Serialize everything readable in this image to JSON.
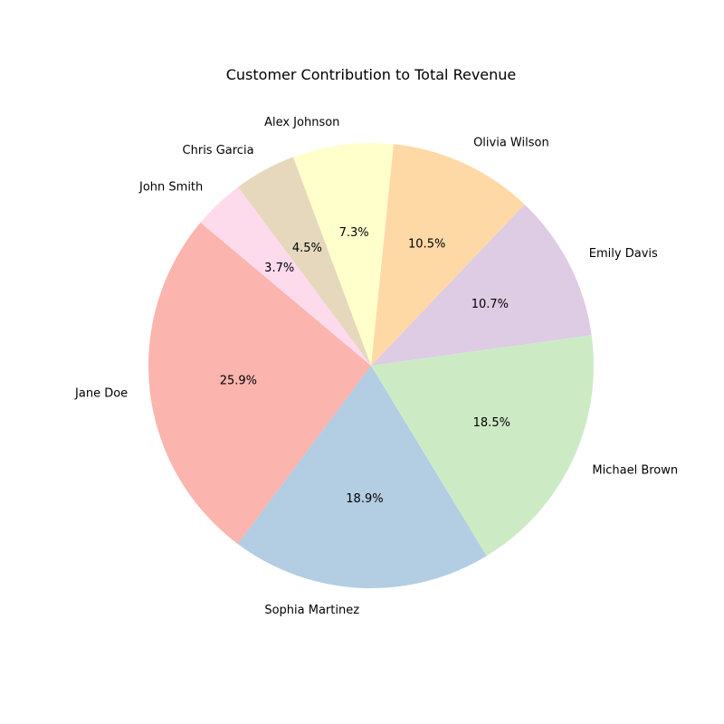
{
  "chart_data": {
    "type": "pie",
    "title": "Customer Contribution to Total Revenue",
    "autopct_format": "%.1f%%",
    "start_angle_deg": 140,
    "direction": "counterclockwise",
    "slices": [
      {
        "label": "Jane Doe",
        "value": 25.9,
        "color": "#fbb4ae"
      },
      {
        "label": "Sophia Martinez",
        "value": 18.9,
        "color": "#b3cde3"
      },
      {
        "label": "Michael Brown",
        "value": 18.5,
        "color": "#ccebc5"
      },
      {
        "label": "Emily Davis",
        "value": 10.7,
        "color": "#decbe4"
      },
      {
        "label": "Olivia Wilson",
        "value": 10.5,
        "color": "#fed9a6"
      },
      {
        "label": "Alex Johnson",
        "value": 7.3,
        "color": "#ffffcc"
      },
      {
        "label": "Chris Garcia",
        "value": 4.5,
        "color": "#e5d8bd"
      },
      {
        "label": "John Smith",
        "value": 3.7,
        "color": "#fddaec"
      }
    ],
    "percent_labels": [
      "25.9%",
      "18.9%",
      "18.5%",
      "10.7%",
      "10.5%",
      "7.3%",
      "4.5%",
      "3.7%"
    ]
  }
}
